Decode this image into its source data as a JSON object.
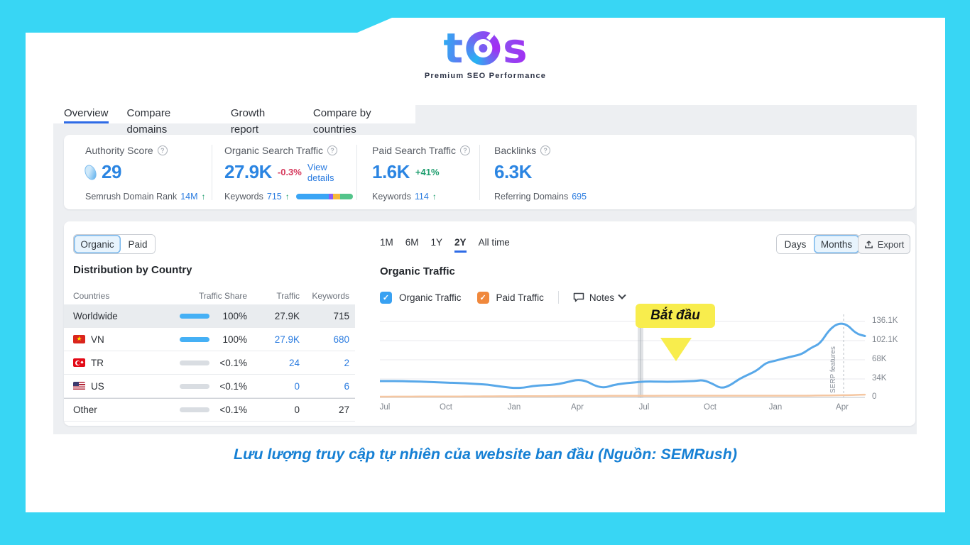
{
  "brand": {
    "logo_text": "tos",
    "tagline": "Premium SEO Performance"
  },
  "tabs": [
    {
      "label": "Overview",
      "active": true
    },
    {
      "label": "Compare domains",
      "active": false
    },
    {
      "label": "Growth report",
      "active": false
    },
    {
      "label": "Compare by countries",
      "active": false
    }
  ],
  "metrics": {
    "authority": {
      "title": "Authority Score",
      "value": "29",
      "sub_label": "Semrush Domain Rank",
      "sub_value": "14M",
      "sub_arrow": "↑"
    },
    "organic": {
      "title": "Organic Search Traffic",
      "value": "27.9K",
      "delta": "-0.3%",
      "link": "View details",
      "sub_label": "Keywords",
      "sub_value": "715",
      "sub_arrow": "↑"
    },
    "paid": {
      "title": "Paid Search Traffic",
      "value": "1.6K",
      "delta": "+41%",
      "sub_label": "Keywords",
      "sub_value": "114",
      "sub_arrow": "↑"
    },
    "backlinks": {
      "title": "Backlinks",
      "value": "6.3K",
      "sub_label": "Referring Domains",
      "sub_value": "695"
    }
  },
  "left_panel": {
    "toggle": {
      "options": [
        "Organic",
        "Paid"
      ],
      "selected": "Organic"
    },
    "section_title": "Distribution by Country",
    "table": {
      "headers": [
        "Countries",
        "Traffic Share",
        "Traffic",
        "Keywords"
      ],
      "rows": [
        {
          "country": "Worldwide",
          "flag": "",
          "share": "100%",
          "traffic": "27.9K",
          "keywords": "715",
          "bar": "full",
          "highlighted": true
        },
        {
          "country": "VN",
          "flag": "vn",
          "share": "100%",
          "traffic": "27.9K",
          "keywords": "680",
          "bar": "full",
          "highlighted": false
        },
        {
          "country": "TR",
          "flag": "tr",
          "share": "<0.1%",
          "traffic": "24",
          "keywords": "2",
          "bar": "empty",
          "highlighted": false
        },
        {
          "country": "US",
          "flag": "us",
          "share": "<0.1%",
          "traffic": "0",
          "keywords": "6",
          "bar": "empty",
          "highlighted": false
        },
        {
          "country": "Other",
          "flag": "",
          "share": "<0.1%",
          "traffic": "0",
          "keywords": "27",
          "bar": "empty",
          "highlighted": false
        }
      ]
    }
  },
  "chart_panel": {
    "ranges": [
      "1M",
      "6M",
      "1Y",
      "2Y",
      "All time"
    ],
    "active_range": "2Y",
    "view_toggle": {
      "options": [
        "Days",
        "Months"
      ],
      "selected": "Months"
    },
    "export_label": "Export",
    "section_title": "Organic Traffic",
    "legend": [
      {
        "label": "Organic Traffic",
        "color": "#38a1f2",
        "checked": true
      },
      {
        "label": "Paid Traffic",
        "color": "#f0883c",
        "checked": true
      }
    ],
    "notes_label": "Notes",
    "annotation_label": "Bắt đầu",
    "serp_label": "SERP features",
    "y_ticks": [
      "136.1K",
      "102.1K",
      "68K",
      "34K",
      "0"
    ],
    "x_ticks": [
      "Jul",
      "Oct",
      "Jan",
      "Apr",
      "Jul",
      "Oct",
      "Jan",
      "Apr"
    ]
  },
  "caption": "Lưu lượng truy cập tự nhiên của website ban đầu (Nguồn: SEMRush)",
  "colors": {
    "frame_cyan": "#38d6f4",
    "accent_blue": "#2b85e2",
    "link_blue": "#2b7ce0",
    "negative_red": "#d6395c",
    "positive_green": "#1f9e6f",
    "organic_line": "#58a8e9",
    "paid_line": "#f5c7a2",
    "annotation_yellow": "#f8ed4d",
    "caption_blue": "#1680d4",
    "tab_underline": "#2e6be6"
  },
  "chart_data": {
    "type": "line",
    "title": "Organic Traffic",
    "legend_position": "top",
    "grid": true,
    "x_ticks": [
      "Jul",
      "Oct",
      "Jan",
      "Apr",
      "Jul",
      "Oct",
      "Jan",
      "Apr"
    ],
    "y_ticks_labels": [
      "136.1K",
      "102.1K",
      "68K",
      "34K",
      "0"
    ],
    "y_max_k": 136.1,
    "unit": "monthly visits (thousands)",
    "series": [
      {
        "name": "Organic Traffic",
        "color": "#58a8e9",
        "values_k": [
          29.3,
          29.3,
          29.3,
          28.9,
          28.4,
          28,
          27.3,
          26.7,
          26.1,
          25.7,
          24.8,
          23.8,
          22.9,
          20.4,
          18.4,
          16.8,
          17.2,
          20.4,
          21.6,
          22.3,
          24.2,
          28,
          31.8,
          29.3,
          20.4,
          17.2,
          22.3,
          24.8,
          26.3,
          28,
          28.6,
          28.2,
          28,
          28.2,
          28.9,
          29.3,
          31.2,
          24.8,
          15.9,
          21.6,
          33.1,
          40.7,
          48.3,
          62.3,
          65.5,
          70,
          73.8,
          77.6,
          89,
          96,
          120.8,
          132.9,
          131,
          114.5,
          110
        ]
      },
      {
        "name": "Paid Traffic",
        "color": "#f5c7a2",
        "values_k": [
          1.3,
          1.3,
          1.4,
          1.4,
          1.5,
          1.5,
          1.5,
          1.6,
          1.6,
          1.7,
          1.8,
          1.8,
          1.9,
          2,
          2,
          2.1,
          2.2,
          2.2,
          2.3,
          2.4,
          2.5,
          2.5,
          2.6,
          2.6,
          2.7,
          2.7,
          2.8,
          2.8,
          2.8,
          2.9,
          2.9,
          3,
          3,
          3,
          3,
          3,
          3,
          3,
          3,
          3,
          3,
          3,
          3,
          3,
          3,
          3,
          3,
          3,
          3.2,
          3.4,
          3.6,
          3.8,
          4,
          4.4,
          5
        ]
      }
    ],
    "annotations": [
      {
        "text": "Bắt đầu",
        "type": "label-with-arrow",
        "position": "above second Jul tick (vertical highlight band)"
      },
      {
        "text": "SERP features",
        "type": "dashed-vertical-line",
        "position": "near Apr peak"
      }
    ]
  }
}
